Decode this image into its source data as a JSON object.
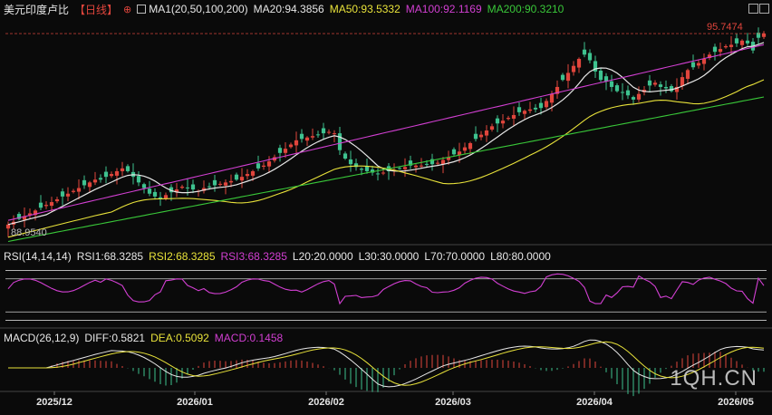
{
  "header": {
    "title": "美元印度卢比",
    "period": "【日线】",
    "ma_label": "MA1(20,50,100,200)",
    "ma20": "MA20:94.3856",
    "ma50": "MA50:93.5332",
    "ma100": "MA100:92.1169",
    "ma200": "MA200:90.3210"
  },
  "rsi_header": {
    "label": "RSI(14,14,14)",
    "rsi1": "RSI1:68.3285",
    "rsi2": "RSI2:68.3285",
    "rsi3": "RSI3:68.3285",
    "l20": "L20:20.0000",
    "l30": "L30:30.0000",
    "l70": "L70:70.0000",
    "l80": "L80:80.0000"
  },
  "macd_header": {
    "label": "MACD(26,12,9)",
    "diff": "DIFF:0.5821",
    "dea": "DEA:0.5092",
    "macd": "MACD:0.1458"
  },
  "watermark": "1QH.CN",
  "colors": {
    "up": "#e0453c",
    "down": "#3ec28f",
    "ma20": "#e6e6e6",
    "ma50": "#e8e23a",
    "ma100": "#d23fd2",
    "ma200": "#39c739",
    "rsi": "#d23fd2",
    "dea": "#e8e23a"
  },
  "chart_data": {
    "type": "candlestick",
    "x_ticks": [
      "2025/12",
      "2026/01",
      "2026/02",
      "2026/03",
      "2026/04",
      "2026/05"
    ],
    "high_mark": "95.7474",
    "low_mark": "88.9540",
    "ylim": [
      88.3,
      96.3
    ],
    "closes": [
      88.95,
      89.05,
      89.15,
      89.25,
      89.35,
      89.45,
      89.55,
      89.65,
      89.75,
      89.85,
      89.95,
      90.05,
      90.15,
      90.25,
      90.35,
      90.45,
      90.55,
      90.55,
      90.65,
      90.75,
      90.85,
      90.95,
      90.85,
      90.65,
      90.45,
      90.25,
      90.05,
      89.95,
      89.85,
      90.0,
      90.1,
      90.2,
      90.3,
      90.25,
      90.2,
      90.15,
      90.25,
      90.3,
      90.35,
      90.4,
      90.45,
      90.5,
      90.55,
      90.65,
      90.75,
      90.85,
      90.95,
      91.05,
      91.2,
      91.35,
      91.5,
      91.65,
      91.8,
      91.95,
      92.0,
      92.05,
      92.1,
      92.15,
      92.2,
      92.25,
      92.2,
      91.6,
      91.3,
      91.1,
      91.0,
      90.9,
      90.85,
      90.8,
      90.75,
      90.8,
      90.85,
      90.9,
      90.95,
      91.0,
      91.05,
      91.05,
      91.05,
      91.1,
      91.1,
      91.15,
      91.25,
      91.35,
      91.45,
      91.55,
      91.7,
      91.85,
      92.0,
      92.15,
      92.3,
      92.45,
      92.55,
      92.65,
      92.75,
      92.85,
      92.95,
      93.0,
      93.05,
      93.05,
      93.1,
      93.35,
      93.6,
      93.85,
      94.1,
      94.35,
      94.6,
      94.85,
      95.0,
      94.8,
      94.4,
      94.1,
      94.05,
      93.85,
      93.7,
      93.65,
      93.55,
      93.4,
      93.6,
      93.75,
      93.9,
      94.0,
      93.85,
      93.8,
      93.7,
      93.85,
      94.2,
      94.45,
      94.55,
      94.7,
      94.85,
      95.0,
      95.1,
      95.2,
      95.3,
      95.35,
      95.4,
      95.5,
      95.4,
      95.15,
      95.6,
      95.75
    ],
    "ma20": [
      89.0,
      89.1,
      89.2,
      89.3,
      89.4,
      89.5,
      89.6,
      89.7,
      89.8,
      89.85,
      89.9,
      89.95,
      90.0,
      90.05,
      90.1,
      90.15,
      90.2,
      90.25,
      90.3,
      90.35
    ],
    "rsi_ticks": [
      20,
      30,
      70,
      80
    ],
    "macd_range": [
      -0.6,
      0.6
    ]
  }
}
